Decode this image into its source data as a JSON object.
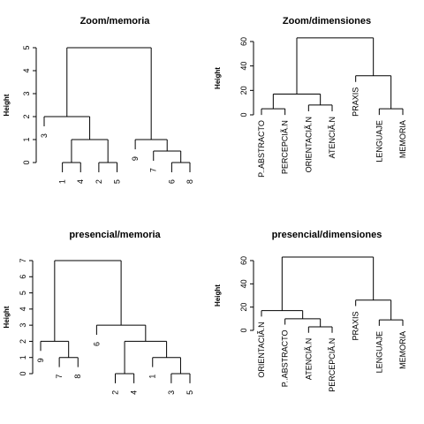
{
  "chart_data": [
    {
      "type": "dendrogram",
      "title": "Zoom/memoria",
      "ylabel": "Height",
      "ylim": [
        0,
        5
      ],
      "yticks": [
        0,
        1,
        2,
        3,
        4,
        5
      ],
      "order": [
        "3",
        "1",
        "4",
        "2",
        "5",
        "9",
        "7",
        "6",
        "8"
      ],
      "merges": [
        {
          "a": "1",
          "b": "4",
          "height": 0.0
        },
        {
          "a": "2",
          "b": "5",
          "height": 0.0
        },
        {
          "a": "6",
          "b": "8",
          "height": 0.0
        },
        {
          "a": "7",
          "b": "6,8",
          "height": 0.5
        },
        {
          "a": "1,4",
          "b": "2,5",
          "height": 1.0
        },
        {
          "a": "9",
          "b": "7,6,8",
          "height": 1.0
        },
        {
          "a": "3",
          "b": "1,4,2,5",
          "height": 2.0
        },
        {
          "a": "3,1,4,2,5",
          "b": "9,7,6,8",
          "height": 5.0
        }
      ]
    },
    {
      "type": "dendrogram",
      "title": "Zoom/dimensiones",
      "ylabel": "Height",
      "ylim": [
        0,
        60
      ],
      "yticks": [
        0,
        20,
        40,
        60
      ],
      "order": [
        "P..ABSTRACTO",
        "PERCEPCIÃ.N",
        "ORIENTACIÃ.N",
        "ATENCIÃ.N",
        "PRAXIS",
        "LENGUAJE",
        "MEMORIA"
      ],
      "merges": [
        {
          "a": "P..ABSTRACTO",
          "b": "PERCEPCIÃ.N",
          "height": 5
        },
        {
          "a": "ORIENTACIÃ.N",
          "b": "ATENCIÃ.N",
          "height": 8
        },
        {
          "a": "LENGUAJE",
          "b": "MEMORIA",
          "height": 5
        },
        {
          "a": "P..ABSTRACTO,PERCEPCIÃ.N",
          "b": "ORIENTACIÃ.N,ATENCIÃ.N",
          "height": 17
        },
        {
          "a": "PRAXIS",
          "b": "LENGUAJE,MEMORIA",
          "height": 32
        },
        {
          "a": "P..ABSTRACTO,PERCEPCIÃ.N,ORIENTACIÃ.N,ATENCIÃ.N",
          "b": "PRAXIS,LENGUAJE,MEMORIA",
          "height": 63
        }
      ]
    },
    {
      "type": "dendrogram",
      "title": "presencial/memoria",
      "ylabel": "Height",
      "ylim": [
        0,
        7
      ],
      "yticks": [
        0,
        1,
        2,
        3,
        4,
        5,
        6,
        7
      ],
      "order": [
        "9",
        "7",
        "8",
        "6",
        "2",
        "4",
        "1",
        "3",
        "5"
      ],
      "merges": [
        {
          "a": "2",
          "b": "4",
          "height": 0.0
        },
        {
          "a": "3",
          "b": "5",
          "height": 0.0
        },
        {
          "a": "7",
          "b": "8",
          "height": 1.0
        },
        {
          "a": "1",
          "b": "3,5",
          "height": 1.0
        },
        {
          "a": "9",
          "b": "7,8",
          "height": 2.0
        },
        {
          "a": "2,4",
          "b": "1,3,5",
          "height": 2.0
        },
        {
          "a": "6",
          "b": "2,4,1,3,5",
          "height": 3.0
        },
        {
          "a": "9,7,8",
          "b": "6,2,4,1,3,5",
          "height": 7.0
        }
      ]
    },
    {
      "type": "dendrogram",
      "title": "presencial/dimensiones",
      "ylabel": "Height",
      "ylim": [
        0,
        60
      ],
      "yticks": [
        0,
        20,
        40,
        60
      ],
      "order": [
        "ORIENTACIÃ.N",
        "P..ABSTRACTO",
        "ATENCIÃ.N",
        "PERCEPCIÃ.N",
        "PRAXIS",
        "LENGUAJE",
        "MEMORIA"
      ],
      "merges": [
        {
          "a": "ATENCIÃ.N",
          "b": "PERCEPCIÃ.N",
          "height": 3
        },
        {
          "a": "LENGUAJE",
          "b": "MEMORIA",
          "height": 9
        },
        {
          "a": "P..ABSTRACTO",
          "b": "ATENCIÃ.N,PERCEPCIÃ.N",
          "height": 10
        },
        {
          "a": "ORIENTACIÃ.N",
          "b": "P..ABSTRACTO,ATENCIÃ.N,PERCEPCIÃ.N",
          "height": 17
        },
        {
          "a": "PRAXIS",
          "b": "LENGUAJE,MEMORIA",
          "height": 26
        },
        {
          "a": "ORIENTACIÃ.N,P..ABSTRACTO,ATENCIÃ.N,PERCEPCIÃ.N",
          "b": "PRAXIS,LENGUAJE,MEMORIA",
          "height": 63
        }
      ]
    }
  ]
}
